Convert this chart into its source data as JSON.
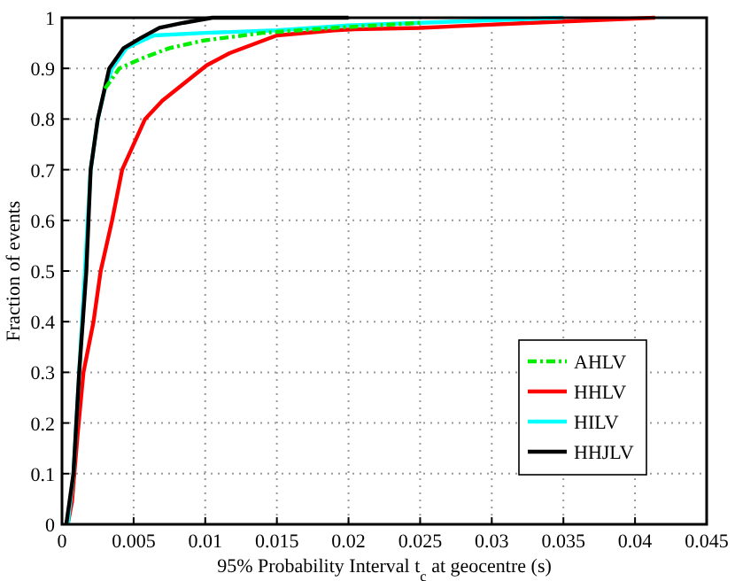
{
  "chart_data": {
    "type": "line",
    "xlabel": "95% Probability Interval t$_{c}$ at geocentre (s)",
    "ylabel": "Fraction of events",
    "xlim": [
      0,
      0.045
    ],
    "xticks": [
      0,
      0.005,
      0.01,
      0.015,
      0.02,
      0.025,
      0.03,
      0.035,
      0.04,
      0.045
    ],
    "ylim": [
      0,
      1
    ],
    "yticks": [
      0,
      0.1,
      0.2,
      0.3,
      0.4,
      0.5,
      0.6,
      0.7,
      0.8,
      0.9,
      1
    ],
    "grid": true,
    "legend": "bottom right",
    "series": [
      {
        "name": "AHLV",
        "color": "#00ee00",
        "line_style": "dashed",
        "x": [
          0.003,
          0.0035,
          0.004,
          0.0056,
          0.0075,
          0.0099,
          0.014,
          0.019,
          0.025
        ],
        "values": [
          0.86,
          0.88,
          0.9,
          0.92,
          0.94,
          0.955,
          0.97,
          0.98,
          0.99
        ]
      },
      {
        "name": "HHLV",
        "color": "#ff0000",
        "line_style": "solid",
        "x": [
          0.0004,
          0.0007,
          0.0011,
          0.0015,
          0.0022,
          0.0027,
          0.0035,
          0.0042,
          0.0058,
          0.007,
          0.0101,
          0.0117,
          0.015,
          0.019,
          0.0204,
          0.025,
          0.0328,
          0.0414
        ],
        "values": [
          0,
          0.045,
          0.18,
          0.3,
          0.4,
          0.5,
          0.6,
          0.7,
          0.8,
          0.836,
          0.906,
          0.93,
          0.965,
          0.975,
          0.977,
          0.98,
          0.99,
          1
        ]
      },
      {
        "name": "HILV",
        "color": "#00ffff",
        "line_style": "solid",
        "x": [
          0.0004,
          0.0008,
          0.0012,
          0.0016,
          0.002,
          0.0025,
          0.003,
          0.0035,
          0.0045,
          0.0064,
          0.01,
          0.015,
          0.02,
          0.025,
          0.035
        ],
        "values": [
          0,
          0.1,
          0.3,
          0.5,
          0.7,
          0.8,
          0.86,
          0.9,
          0.94,
          0.965,
          0.97,
          0.975,
          0.985,
          0.99,
          1
        ]
      },
      {
        "name": "HHJLV",
        "color": "#000000",
        "line_style": "solid",
        "x": [
          0.0003,
          0.0008,
          0.0012,
          0.0017,
          0.002,
          0.0025,
          0.0033,
          0.0043,
          0.0055,
          0.0068,
          0.0085,
          0.0105,
          0.015,
          0.02
        ],
        "values": [
          0,
          0.1,
          0.3,
          0.5,
          0.7,
          0.8,
          0.9,
          0.94,
          0.96,
          0.98,
          0.99,
          1,
          1,
          1
        ]
      }
    ]
  }
}
